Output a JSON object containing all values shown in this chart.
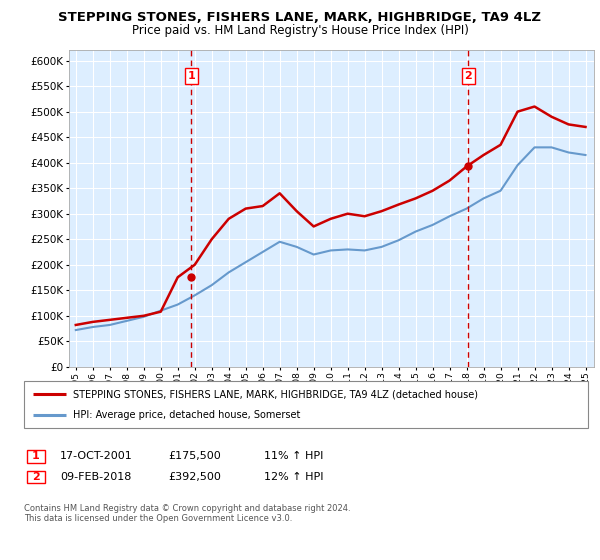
{
  "title": "STEPPING STONES, FISHERS LANE, MARK, HIGHBRIDGE, TA9 4LZ",
  "subtitle": "Price paid vs. HM Land Registry's House Price Index (HPI)",
  "years": [
    1995,
    1996,
    1997,
    1998,
    1999,
    2000,
    2001,
    2002,
    2003,
    2004,
    2005,
    2006,
    2007,
    2008,
    2009,
    2010,
    2011,
    2012,
    2013,
    2014,
    2015,
    2016,
    2017,
    2018,
    2019,
    2020,
    2021,
    2022,
    2023,
    2024,
    2025
  ],
  "hpi_values": [
    72000,
    78000,
    82000,
    90000,
    98000,
    110000,
    122000,
    140000,
    160000,
    185000,
    205000,
    225000,
    245000,
    235000,
    220000,
    228000,
    230000,
    228000,
    235000,
    248000,
    265000,
    278000,
    295000,
    310000,
    330000,
    345000,
    395000,
    430000,
    430000,
    420000,
    415000
  ],
  "house_values": [
    82000,
    88000,
    92000,
    96000,
    100000,
    108000,
    175500,
    200000,
    250000,
    290000,
    310000,
    315000,
    340000,
    305000,
    275000,
    290000,
    300000,
    295000,
    305000,
    318000,
    330000,
    345000,
    365000,
    392500,
    415000,
    435000,
    500000,
    510000,
    490000,
    475000,
    470000
  ],
  "sale1_year": 2001.8,
  "sale1_value": 175500,
  "sale2_year": 2018.1,
  "sale2_value": 392500,
  "sale1_label": "1",
  "sale2_label": "2",
  "line1_color": "#cc0000",
  "line2_color": "#6699cc",
  "plot_bg": "#ddeeff",
  "ylim": [
    0,
    620000
  ],
  "ylabel_ticks": [
    0,
    50000,
    100000,
    150000,
    200000,
    250000,
    300000,
    350000,
    400000,
    450000,
    500000,
    550000,
    600000
  ],
  "legend1_label": "STEPPING STONES, FISHERS LANE, MARK, HIGHBRIDGE, TA9 4LZ (detached house)",
  "legend2_label": "HPI: Average price, detached house, Somerset",
  "annotation1_date": "17-OCT-2001",
  "annotation1_price": "£175,500",
  "annotation1_hpi": "11% ↑ HPI",
  "annotation2_date": "09-FEB-2018",
  "annotation2_price": "£392,500",
  "annotation2_hpi": "12% ↑ HPI",
  "footer": "Contains HM Land Registry data © Crown copyright and database right 2024.\nThis data is licensed under the Open Government Licence v3.0."
}
